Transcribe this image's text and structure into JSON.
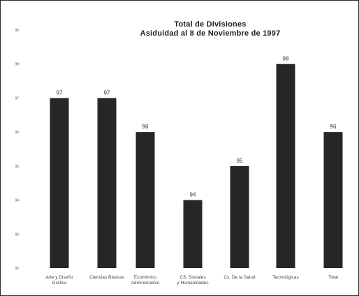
{
  "chart_data": {
    "type": "bar",
    "title": "Total de Divisiones",
    "subtitle": "Asiduidad al 8 de Noviembre de 1997",
    "categories": [
      "Arte y Diseño Gráfico",
      "Ciencias Básicas",
      "Económico Administrativo",
      "CS. Sociales y Humanidades",
      "Cs. De la Salud",
      "Tecnológicas",
      "Total"
    ],
    "values": [
      97,
      97,
      96,
      94,
      95,
      98,
      96
    ],
    "data_labels": [
      "97",
      "97",
      "96",
      "94",
      "95",
      "98",
      "96"
    ],
    "yticks": [
      "92",
      "93",
      "94",
      "95",
      "96",
      "97",
      "98",
      "99"
    ],
    "ylim": [
      92,
      99
    ],
    "grid": false,
    "legend": "none",
    "bar_color": "#262626"
  }
}
